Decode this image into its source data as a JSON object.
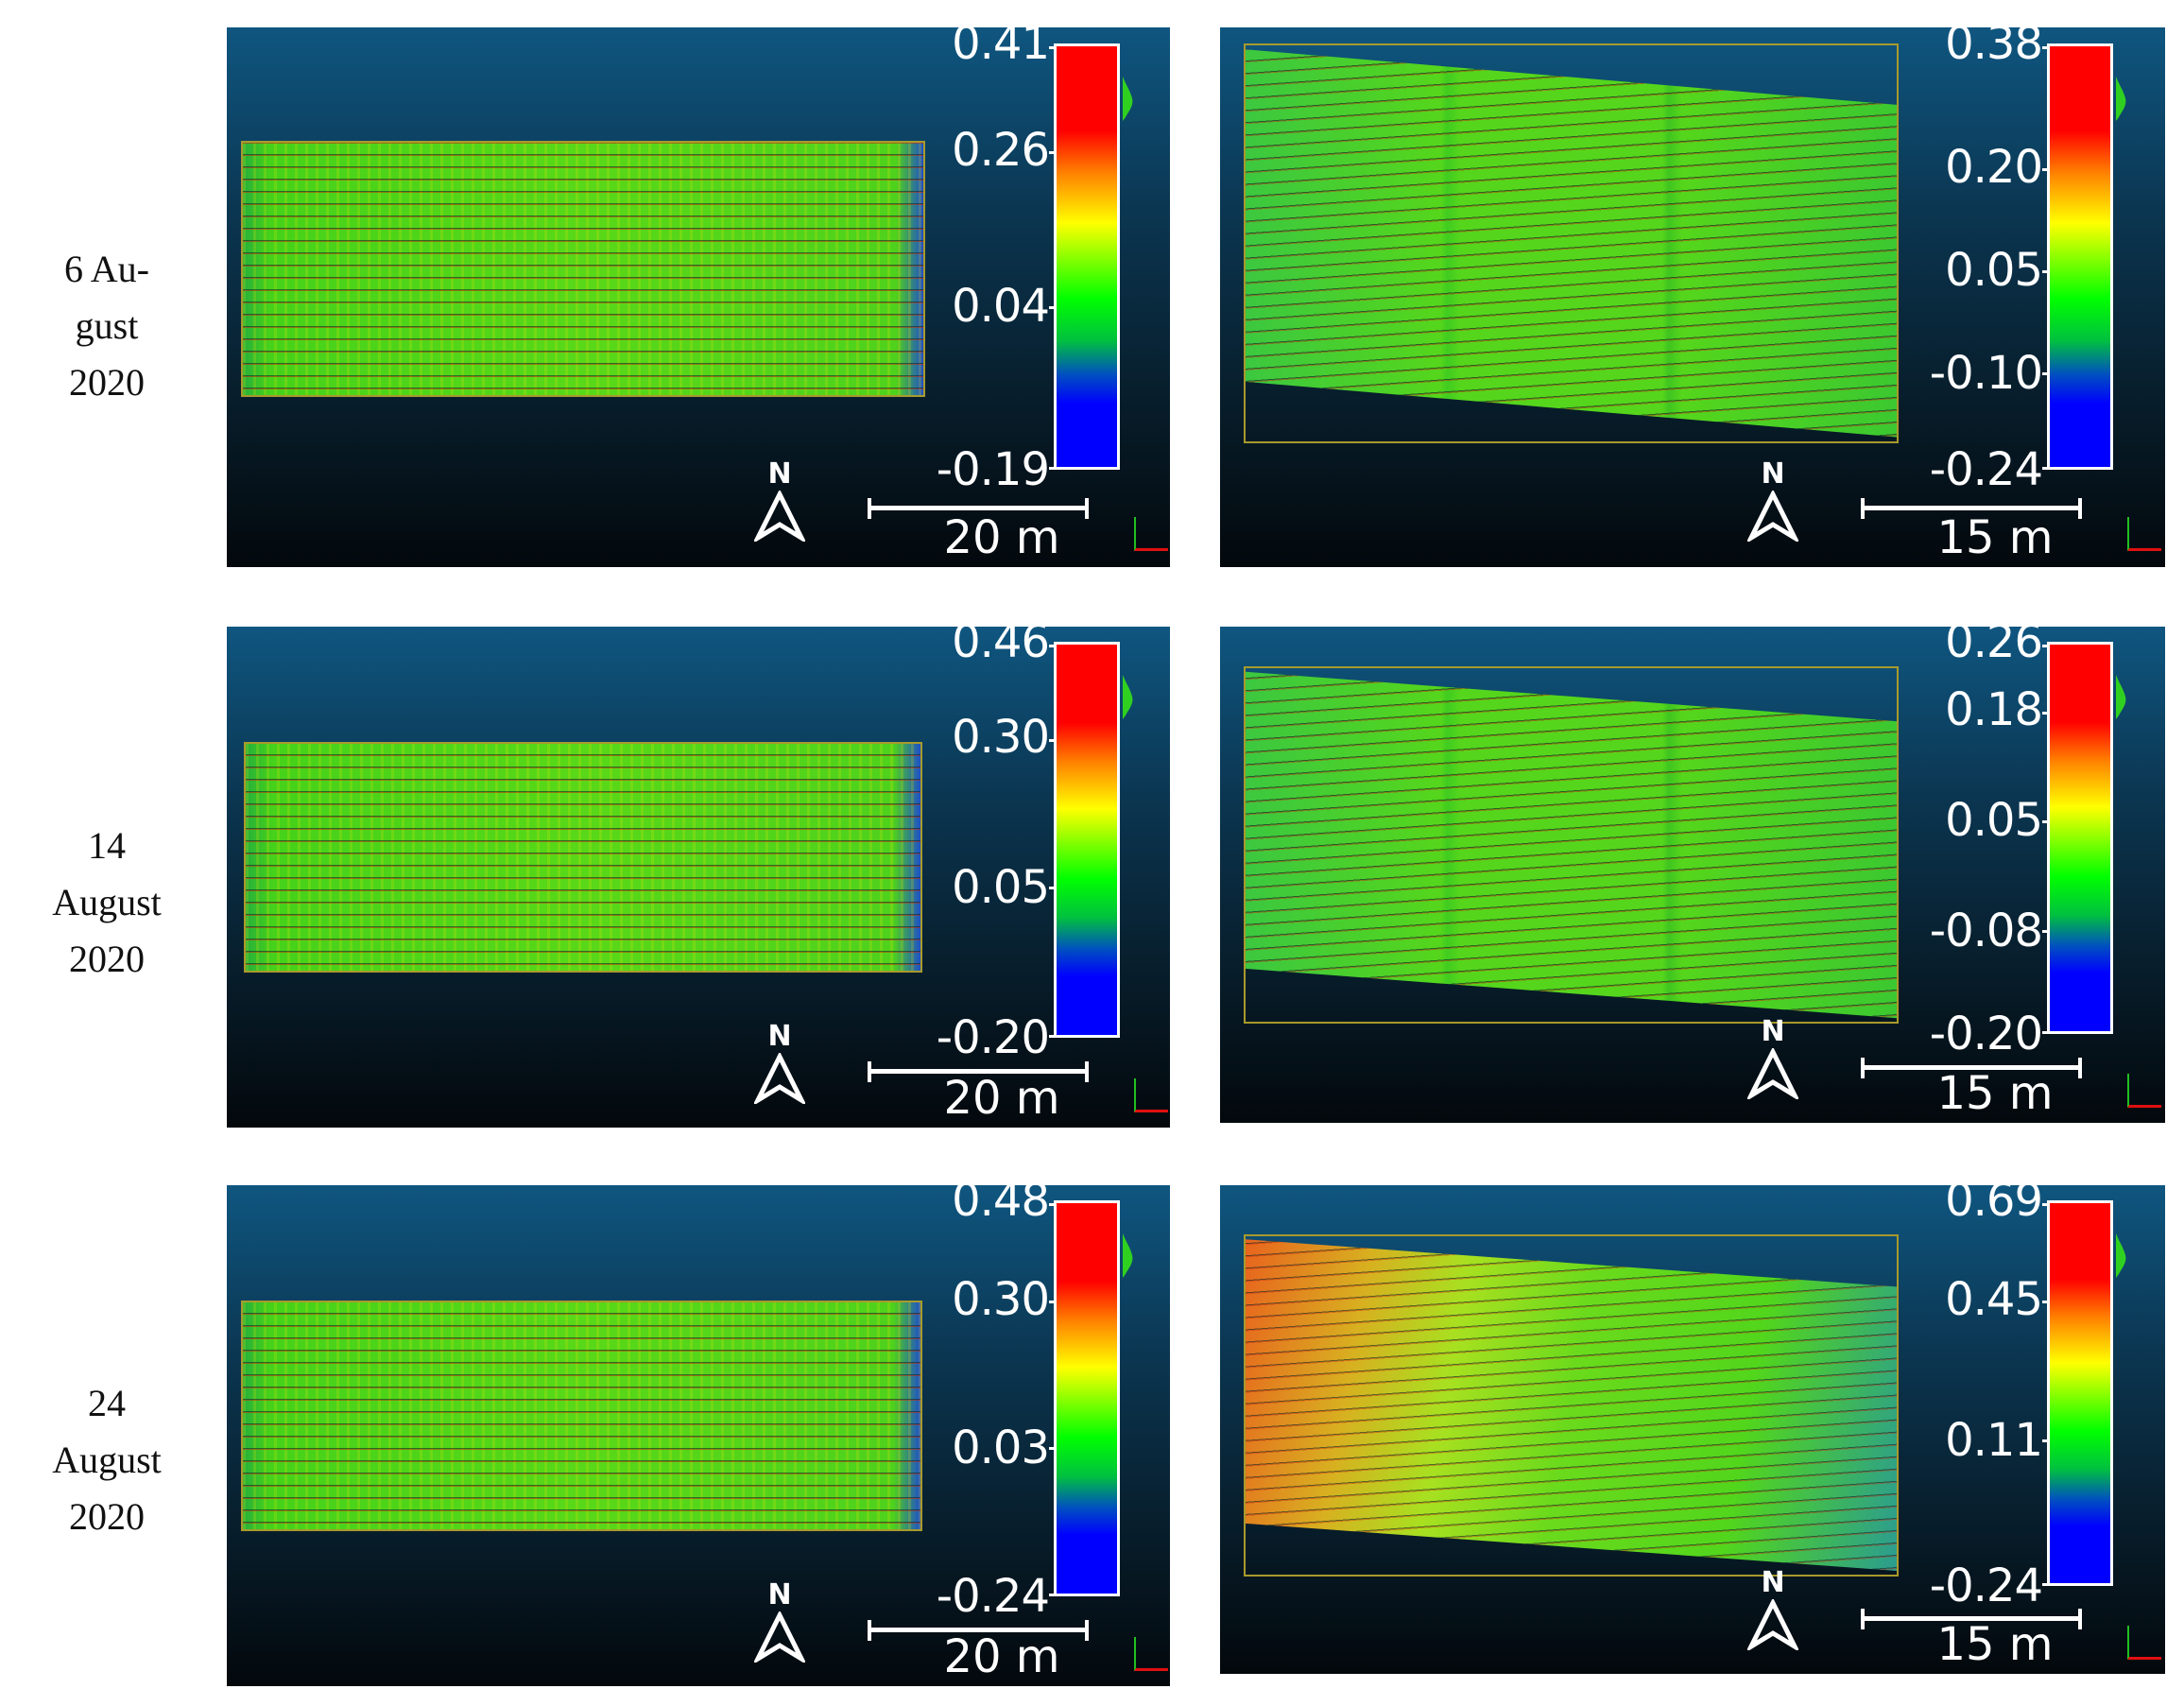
{
  "rows": [
    {
      "label": [
        "6 Au-",
        "gust",
        "2020"
      ],
      "left": {
        "colorbar": {
          "max": 0.41,
          "min": -0.19,
          "ticks": [
            "0.41",
            "0.26",
            "0.04",
            "-0.19"
          ]
        },
        "north": "N",
        "scale": "20 m"
      },
      "right": {
        "colorbar": {
          "max": 0.38,
          "min": -0.24,
          "ticks": [
            "0.38",
            "0.20",
            "0.05",
            "-0.10",
            "-0.24"
          ]
        },
        "north": "N",
        "scale": "15 m"
      }
    },
    {
      "label": [
        "14",
        "August",
        "2020"
      ],
      "left": {
        "colorbar": {
          "max": 0.46,
          "min": -0.2,
          "ticks": [
            "0.46",
            "0.30",
            "0.05",
            "-0.20"
          ]
        },
        "north": "N",
        "scale": "20 m"
      },
      "right": {
        "colorbar": {
          "max": 0.26,
          "min": -0.2,
          "ticks": [
            "0.26",
            "0.18",
            "0.05",
            "-0.08",
            "-0.20"
          ]
        },
        "north": "N",
        "scale": "15 m"
      }
    },
    {
      "label": [
        "24",
        "August",
        "2020"
      ],
      "left": {
        "colorbar": {
          "max": 0.48,
          "min": -0.24,
          "ticks": [
            "0.48",
            "0.30",
            "0.03",
            "-0.24"
          ]
        },
        "north": "N",
        "scale": "20 m"
      },
      "right": {
        "colorbar": {
          "max": 0.69,
          "min": -0.24,
          "ticks": [
            "0.69",
            "0.45",
            "0.11",
            "-0.24"
          ]
        },
        "north": "N",
        "scale": "15 m"
      }
    }
  ],
  "colors": {
    "high": "#ff0000",
    "mid": "#ffff00",
    "zero": "#00ff00",
    "low": "#0000ff",
    "background_top": "#0f5680",
    "background_bottom": "#03080c"
  }
}
